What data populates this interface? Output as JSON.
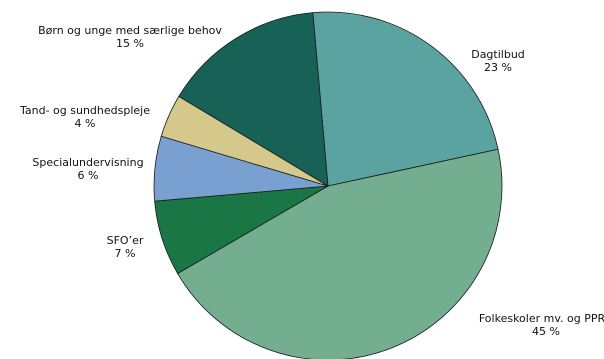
{
  "chart_data": {
    "type": "pie",
    "start_angle_deg": -5,
    "direction": "clockwise",
    "slices": [
      {
        "label": "Dagtilbud",
        "value_label": "23 %",
        "value": 23,
        "color": "#5ba3a0"
      },
      {
        "label": "Folkeskoler mv. og PPR",
        "value_label": "45 %",
        "value": 45,
        "color": "#72ae8f"
      },
      {
        "label": "SFO’er",
        "value_label": "7 %",
        "value": 7,
        "color": "#1a7745"
      },
      {
        "label": "Specialundervisning",
        "value_label": "6 %",
        "value": 6,
        "color": "#7a9fd1"
      },
      {
        "label": "Tand- og sundhedspleje",
        "value_label": "4 %",
        "value": 4,
        "color": "#d4c98a"
      },
      {
        "label": "Børn og unge med særlige behov",
        "value_label": "15 %",
        "value": 15,
        "color": "#176156"
      }
    ]
  }
}
